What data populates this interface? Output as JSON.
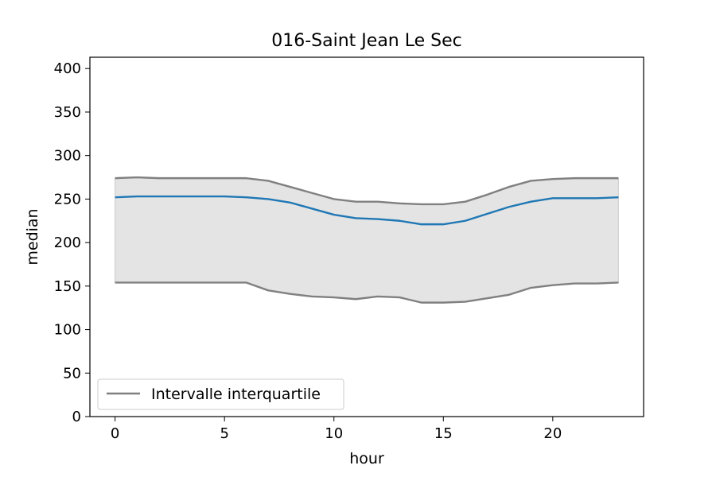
{
  "chart_data": {
    "type": "line",
    "title": "016-Saint Jean Le Sec",
    "xlabel": "hour",
    "ylabel": "median",
    "xlim": [
      -1.15,
      24.15
    ],
    "ylim": [
      0,
      413
    ],
    "xticks": [
      "0",
      "5",
      "10",
      "15",
      "20"
    ],
    "yticks": [
      "0",
      "50",
      "100",
      "150",
      "200",
      "250",
      "300",
      "350",
      "400"
    ],
    "x": [
      0,
      1,
      2,
      3,
      4,
      5,
      6,
      7,
      8,
      9,
      10,
      11,
      12,
      13,
      14,
      15,
      16,
      17,
      18,
      19,
      20,
      21,
      22,
      23
    ],
    "series": [
      {
        "role": "median",
        "color": "#1f77b4",
        "values": [
          252,
          253,
          253,
          253,
          253,
          253,
          252,
          250,
          246,
          239,
          232,
          228,
          227,
          225,
          221,
          221,
          225,
          233,
          241,
          247,
          251,
          251,
          251,
          252
        ]
      },
      {
        "role": "q3",
        "color": "#808080",
        "values": [
          274,
          275,
          274,
          274,
          274,
          274,
          274,
          271,
          264,
          257,
          250,
          247,
          247,
          245,
          244,
          244,
          247,
          255,
          264,
          271,
          273,
          274,
          274,
          274
        ]
      },
      {
        "role": "q1",
        "color": "#808080",
        "values": [
          154,
          154,
          154,
          154,
          154,
          154,
          154,
          145,
          141,
          138,
          137,
          135,
          138,
          137,
          131,
          131,
          132,
          136,
          140,
          148,
          151,
          153,
          153,
          154
        ]
      }
    ],
    "fill_between": {
      "color": "#e4e4e4",
      "edge": "#c8c8c8"
    },
    "legend": {
      "position": "lower-left",
      "entries": [
        {
          "label": "Intervalle interquartile",
          "color": "#808080"
        }
      ]
    },
    "grid": false
  }
}
